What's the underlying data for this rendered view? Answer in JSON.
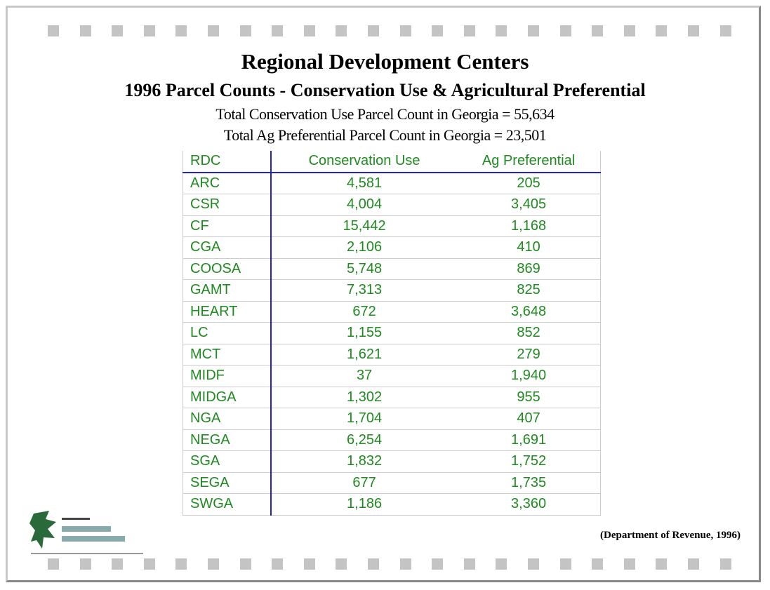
{
  "header": {
    "title": "Regional Development Centers",
    "subtitle": "1996 Parcel Counts - Conservation Use & Agricultural Preferential",
    "lines": [
      "Total Conservation Use Parcel Count in Georgia = 55,634",
      "Total Ag Preferential Parcel Count in Georgia = 23,501"
    ]
  },
  "table": {
    "columns": [
      "RDC",
      "Conservation Use",
      "Ag Preferential"
    ],
    "rows": [
      [
        "ARC",
        "4,581",
        "205"
      ],
      [
        "CSR",
        "4,004",
        "3,405"
      ],
      [
        "CF",
        "15,442",
        "1,168"
      ],
      [
        "CGA",
        "2,106",
        "410"
      ],
      [
        "COOSA",
        "5,748",
        "869"
      ],
      [
        "GAMT",
        "7,313",
        "825"
      ],
      [
        "HEART",
        "672",
        "3,648"
      ],
      [
        "LC",
        "1,155",
        "852"
      ],
      [
        "MCT",
        "1,621",
        "279"
      ],
      [
        "MIDF",
        "37",
        "1,940"
      ],
      [
        "MIDGA",
        "1,302",
        "955"
      ],
      [
        "NGA",
        "1,704",
        "407"
      ],
      [
        "NEGA",
        "6,254",
        "1,691"
      ],
      [
        "SGA",
        "1,832",
        "1,752"
      ],
      [
        "SEGA",
        "677",
        "1,735"
      ],
      [
        "SWGA",
        "1,186",
        "3,360"
      ]
    ]
  },
  "footnote": "(Department of Revenue, 1996)"
}
